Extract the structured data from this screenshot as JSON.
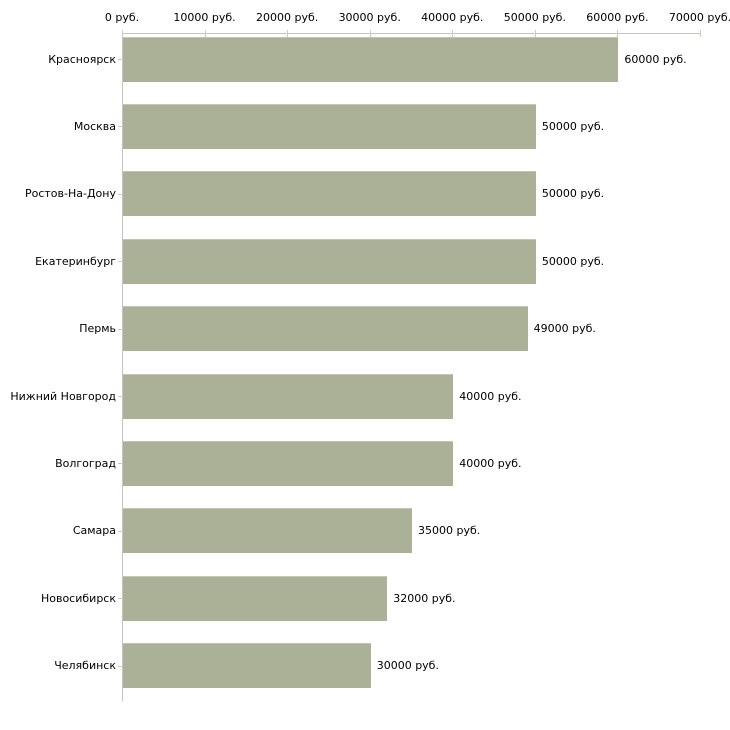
{
  "chart_data": {
    "type": "bar",
    "orientation": "horizontal",
    "title": "",
    "xlabel": "",
    "ylabel": "",
    "categories": [
      "Красноярск",
      "Москва",
      "Ростов-На-Дону",
      "Екатеринбург",
      "Пермь",
      "Нижний Новгород",
      "Волгоград",
      "Самара",
      "Новосибирск",
      "Челябинск"
    ],
    "values": [
      60000,
      50000,
      50000,
      50000,
      49000,
      40000,
      40000,
      35000,
      32000,
      30000
    ],
    "value_labels": [
      "60000 руб.",
      "50000 руб.",
      "50000 руб.",
      "50000 руб.",
      "49000 руб.",
      "40000 руб.",
      "40000 руб.",
      "35000 руб.",
      "32000 руб.",
      "30000 руб."
    ],
    "x_tick_values": [
      0,
      10000,
      20000,
      30000,
      40000,
      50000,
      60000,
      70000
    ],
    "x_tick_labels": [
      "0 руб.",
      "10000 руб.",
      "20000 руб.",
      "30000 руб.",
      "40000 руб.",
      "50000 руб.",
      "60000 руб.",
      "70000 руб."
    ],
    "xlim": [
      0,
      70000
    ],
    "unit": "руб.",
    "grid": false,
    "legend": false,
    "colors": {
      "bar": "#abb196",
      "bar_highlight": "#c3c7b2",
      "axis_line": "#c4c4c4",
      "tick_mark": "#cfcfa8",
      "text": "#000000",
      "background": "#ffffff"
    }
  }
}
